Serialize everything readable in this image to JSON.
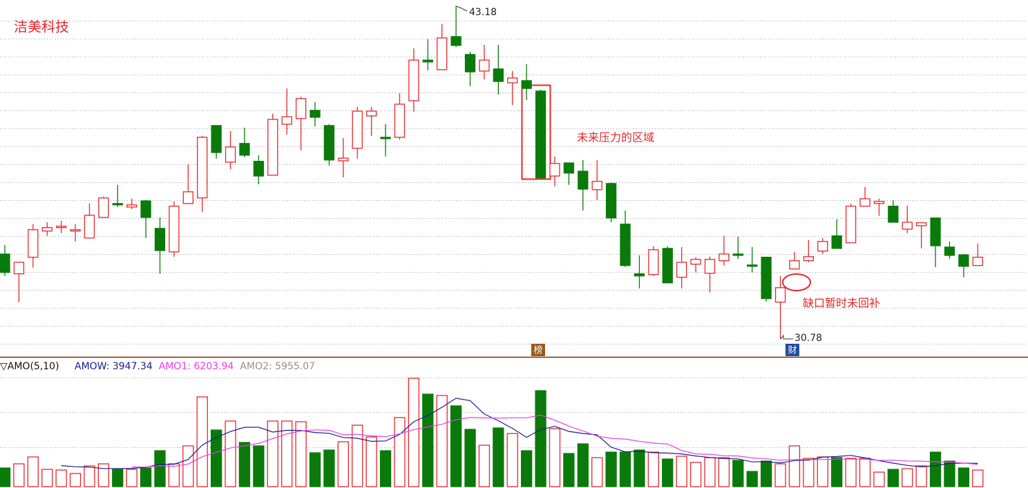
{
  "chart_data": [
    {
      "type": "candlestick",
      "title": "洁美科技",
      "open": [
        33.93,
        33.19,
        33.81,
        34.79,
        34.92,
        34.79,
        34.53,
        35.3,
        35.82,
        35.69,
        35.92,
        34.89,
        34.01,
        35.82,
        36.03,
        38.74,
        37.37,
        38.07,
        37.4,
        36.88,
        38.79,
        39.0,
        39.31,
        38.74,
        37.42,
        37.89,
        39.1,
        38.3,
        38.3,
        39.67,
        41.19,
        40.83,
        42.07,
        41.4,
        40.78,
        40.86,
        40.34,
        40.42,
        40.03,
        36.85,
        37.34,
        37.03,
        36.34,
        36.57,
        35.05,
        33.19,
        33.16,
        34.14,
        33.06,
        33.55,
        33.21,
        33.68,
        33.93,
        33.52,
        33.81,
        32.13,
        33.37,
        33.68,
        34.04,
        34.61,
        34.35,
        35.72,
        35.82,
        35.72,
        34.86,
        34.99,
        35.28,
        34.19,
        33.9,
        33.5
      ],
      "high": [
        34.27,
        33.62,
        35.05,
        35.12,
        35.17,
        35.05,
        35.82,
        36.08,
        36.52,
        36.0,
        35.95,
        35.3,
        35.9,
        37.29,
        38.35,
        38.74,
        38.53,
        38.66,
        37.63,
        39.18,
        40.13,
        39.82,
        39.62,
        38.79,
        38.27,
        39.44,
        39.44,
        38.79,
        39.95,
        41.63,
        41.97,
        42.54,
        43.18,
        41.5,
        41.76,
        41.76,
        40.78,
        41.04,
        40.08,
        37.58,
        37.34,
        37.45,
        37.45,
        36.62,
        35.56,
        33.88,
        34.22,
        34.22,
        34.19,
        33.81,
        33.83,
        34.61,
        34.58,
        34.19,
        33.83,
        33.11,
        34.01,
        34.45,
        34.53,
        35.23,
        35.82,
        36.44,
        36.0,
        35.95,
        35.74,
        35.1,
        35.28,
        34.4,
        33.93,
        34.32
      ],
      "low": [
        33.11,
        32.13,
        33.42,
        34.61,
        34.71,
        34.4,
        34.53,
        35.3,
        35.69,
        35.61,
        34.53,
        33.19,
        33.83,
        35.82,
        35.51,
        37.5,
        37.11,
        37.55,
        36.54,
        36.88,
        38.4,
        37.81,
        38.71,
        37.24,
        36.8,
        37.5,
        38.35,
        37.58,
        38.22,
        39.26,
        40.81,
        40.83,
        41.68,
        40.21,
        40.47,
        39.9,
        39.51,
        39.69,
        36.78,
        36.47,
        36.52,
        35.56,
        35.95,
        35.12,
        33.44,
        32.64,
        33.11,
        32.85,
        32.64,
        33.24,
        32.49,
        33.5,
        33.75,
        33.24,
        32.15,
        30.78,
        33.37,
        33.62,
        33.93,
        34.14,
        34.35,
        35.72,
        35.36,
        35.12,
        34.71,
        34.14,
        33.44,
        33.75,
        33.06,
        33.5
      ],
      "close": [
        33.24,
        33.62,
        34.84,
        34.92,
        34.97,
        34.84,
        35.38,
        36.03,
        35.77,
        35.77,
        35.3,
        34.06,
        35.72,
        36.26,
        38.3,
        37.73,
        37.94,
        37.63,
        36.85,
        38.97,
        39.07,
        39.75,
        39.05,
        37.45,
        37.52,
        39.28,
        39.28,
        38.25,
        39.54,
        41.19,
        41.12,
        42.02,
        41.74,
        40.75,
        41.19,
        40.39,
        40.52,
        40.13,
        36.78,
        37.32,
        36.96,
        36.36,
        36.65,
        35.28,
        33.5,
        33.11,
        34.09,
        32.85,
        33.62,
        33.73,
        33.73,
        33.93,
        33.88,
        33.47,
        32.26,
        32.67,
        33.68,
        33.83,
        34.4,
        34.14,
        35.72,
        36.0,
        35.9,
        35.12,
        35.12,
        35.1,
        34.24,
        33.88,
        33.47,
        33.81
      ],
      "ylim": [
        30.08,
        43.44
      ],
      "grid": true,
      "up_color": "#e8262b",
      "down_color": "#0a7a0a",
      "max_label": 43.18,
      "min_label": 30.78,
      "notes": [
        "未来压力的区域",
        "缺口暂时未回补"
      ],
      "markers": [
        "榜",
        "财"
      ]
    },
    {
      "type": "bar",
      "title": "▽AMO(5,10)",
      "values": [
        4860,
        5940,
        7740,
        4500,
        4320,
        3420,
        5400,
        5940,
        4500,
        4500,
        4860,
        9360,
        5940,
        10620,
        23400,
        14760,
        17100,
        11520,
        10620,
        17100,
        17100,
        16920,
        8820,
        9540,
        11700,
        16020,
        12960,
        9360,
        18000,
        28260,
        24120,
        23760,
        21060,
        14940,
        10800,
        15300,
        13860,
        9360,
        25020,
        15120,
        8640,
        11160,
        7560,
        9000,
        9000,
        9540,
        9000,
        7200,
        7920,
        6300,
        7560,
        7560,
        6840,
        3960,
        6660,
        5940,
        10620,
        7380,
        7740,
        7560,
        7380,
        7380,
        3780,
        4500,
        4680,
        5400,
        9000,
        6660,
        4860,
        4320
      ],
      "lines": [
        {
          "color": "#1c1c8c",
          "values": [
            null,
            null,
            null,
            null,
            5470,
            5180,
            5080,
            4720,
            4720,
            4750,
            5040,
            5830,
            5830,
            7060,
            10840,
            12820,
            14360,
            15480,
            15480,
            14220,
            14690,
            14650,
            14110,
            13900,
            12820,
            12600,
            11810,
            11920,
            13610,
            16920,
            18540,
            20700,
            23040,
            22430,
            18940,
            17170,
            15190,
            12850,
            14870,
            15730,
            14400,
            13860,
            13500,
            10300,
            9070,
            9250,
            8820,
            8750,
            8530,
            7990,
            7600,
            7310,
            7240,
            6440,
            6520,
            6190,
            6800,
            6910,
            7670,
            7850,
            8140,
            7490,
            6770,
            6120,
            5540,
            5150,
            5470,
            6050,
            6120,
            6050
          ]
        },
        {
          "color": "#e83ce8",
          "values": [
            null,
            null,
            null,
            null,
            null,
            null,
            null,
            null,
            null,
            5110,
            5110,
            5450,
            5270,
            5890,
            7790,
            8930,
            10100,
            10660,
            11270,
            12530,
            13750,
            14510,
            14800,
            14690,
            13520,
            13640,
            13230,
            13010,
            13750,
            14870,
            15570,
            16250,
            17480,
            18020,
            17930,
            17860,
            17950,
            17950,
            18650,
            17330,
            15790,
            14530,
            13180,
            12580,
            12400,
            11830,
            11340,
            11120,
            9410,
            8530,
            8420,
            8060,
            7990,
            7490,
            7250,
            6890,
            7060,
            7070,
            7060,
            7180,
            7160,
            7150,
            6840,
            6890,
            6700,
            6640,
            6480,
            6410,
            6120,
            5800
          ]
        }
      ],
      "legend": [
        {
          "label": "AMOW: 3947.34",
          "color": "#1c1c8c"
        },
        {
          "label": "AMO1: 6203.94",
          "color": "#e83ce8"
        },
        {
          "label": "AMO2: 5955.07",
          "color": "#909090"
        }
      ],
      "ylim": [
        0,
        33300
      ],
      "grid": true
    }
  ]
}
